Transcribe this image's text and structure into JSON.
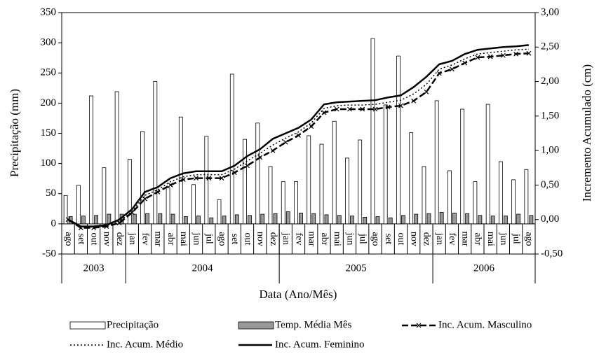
{
  "chart_data": {
    "type": "bar-line",
    "y_label": "Precipitação (mm)",
    "y2_label": "Incremento Acumulado (cm)",
    "x_label": "Data (Ano/Mês)",
    "categories": [
      "ago",
      "set",
      "out",
      "nov",
      "dez",
      "jan",
      "fev",
      "mar",
      "abr",
      "mai",
      "jun",
      "jul",
      "ago",
      "set",
      "out",
      "nov",
      "dez",
      "jan",
      "fev",
      "mar",
      "abr",
      "mai",
      "jun",
      "jul",
      "ago",
      "set",
      "out",
      "nov",
      "dez",
      "jan",
      "fev",
      "mar",
      "abr",
      "mai",
      "jun",
      "jul",
      "ago"
    ],
    "groups": [
      {
        "label": "2003",
        "count": 5
      },
      {
        "label": "2004",
        "count": 12
      },
      {
        "label": "2005",
        "count": 12
      },
      {
        "label": "2006",
        "count": 8
      }
    ],
    "series": [
      {
        "name": "Precipitação",
        "kind": "bar",
        "color": "#ffffff",
        "values": [
          47,
          64,
          212,
          93,
          219,
          107,
          153,
          236,
          60,
          177,
          65,
          145,
          40,
          248,
          140,
          167,
          95,
          70,
          70,
          146,
          132,
          170,
          109,
          139,
          307,
          197,
          278,
          151,
          95,
          204,
          88,
          190,
          70,
          198,
          103,
          73,
          90
        ]
      },
      {
        "name": "Temp. Média Mês",
        "kind": "bar",
        "color": "#999999",
        "values": [
          12,
          13,
          14,
          16,
          16,
          16,
          17,
          17,
          16,
          12,
          13,
          10,
          13,
          15,
          14,
          16,
          17,
          20,
          18,
          17,
          15,
          14,
          13,
          11,
          12,
          10,
          14,
          16,
          17,
          19,
          18,
          17,
          14,
          13,
          13,
          16,
          14
        ]
      },
      {
        "name": "Inc. Acum. Masculino",
        "kind": "line",
        "axis": "y2",
        "style": "dash-x",
        "color": "#000000",
        "values": [
          0,
          -0.12,
          -0.12,
          -0.1,
          -0.05,
          0.1,
          0.3,
          0.4,
          0.5,
          0.58,
          0.6,
          0.6,
          0.6,
          0.68,
          0.78,
          0.9,
          1.0,
          1.12,
          1.22,
          1.35,
          1.55,
          1.6,
          1.6,
          1.6,
          1.6,
          1.63,
          1.65,
          1.72,
          1.85,
          2.12,
          2.18,
          2.27,
          2.35,
          2.36,
          2.38,
          2.4,
          2.41
        ]
      },
      {
        "name": "Inc. Acum. Médio",
        "kind": "line",
        "axis": "y2",
        "style": "dot",
        "color": "#000000",
        "values": [
          0,
          -0.11,
          -0.11,
          -0.09,
          -0.03,
          0.12,
          0.35,
          0.43,
          0.55,
          0.62,
          0.65,
          0.65,
          0.65,
          0.73,
          0.85,
          0.96,
          1.08,
          1.18,
          1.27,
          1.4,
          1.61,
          1.65,
          1.66,
          1.66,
          1.67,
          1.7,
          1.73,
          1.82,
          1.96,
          2.18,
          2.24,
          2.33,
          2.4,
          2.42,
          2.44,
          2.46,
          2.47
        ]
      },
      {
        "name": "Inc. Acum. Feminino",
        "kind": "line",
        "axis": "y2",
        "style": "solid",
        "color": "#000000",
        "values": [
          0,
          -0.1,
          -0.1,
          -0.08,
          0,
          0.15,
          0.4,
          0.47,
          0.6,
          0.67,
          0.7,
          0.7,
          0.7,
          0.78,
          0.92,
          1.02,
          1.17,
          1.25,
          1.33,
          1.45,
          1.67,
          1.7,
          1.71,
          1.72,
          1.73,
          1.77,
          1.8,
          1.92,
          2.07,
          2.25,
          2.3,
          2.4,
          2.46,
          2.48,
          2.5,
          2.51,
          2.53
        ]
      }
    ],
    "ylim": [
      -50,
      350
    ],
    "yticks": [
      -50,
      0,
      50,
      100,
      150,
      200,
      250,
      300,
      350
    ],
    "y2lim": [
      -0.5,
      3
    ],
    "y2ticks": [
      {
        "value": -0.5,
        "label": "-0,50"
      },
      {
        "value": 0,
        "label": "0,00"
      },
      {
        "value": 0.5,
        "label": "0,50"
      },
      {
        "value": 1,
        "label": "1,00"
      },
      {
        "value": 1.5,
        "label": "1,50"
      },
      {
        "value": 2,
        "label": "2,00"
      },
      {
        "value": 2.5,
        "label": "2,50"
      },
      {
        "value": 3,
        "label": "3,00"
      }
    ]
  }
}
